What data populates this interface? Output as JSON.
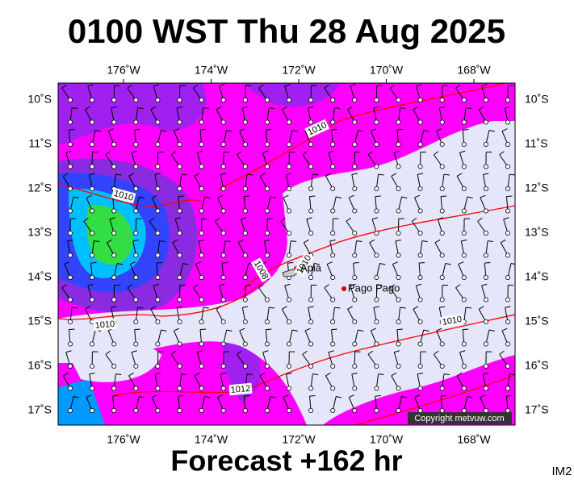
{
  "title": "0100 WST Thu 28 Aug 2025",
  "lon_labels": [
    "176˚W",
    "174˚W",
    "172˚W",
    "170˚W",
    "168˚W"
  ],
  "lat_labels": [
    "10˚S",
    "11˚S",
    "12˚S",
    "13˚S",
    "14˚S",
    "15˚S",
    "16˚S",
    "17˚S"
  ],
  "places": [
    "Apia",
    "Pago Pago"
  ],
  "isobar_labels": [
    "1010",
    "1010",
    "1008",
    "1010",
    "1010",
    "1010",
    "1012"
  ],
  "copyright": "Copyright metvuw.com",
  "footer": "Forecast +162 hr",
  "image_code": "IM2"
}
